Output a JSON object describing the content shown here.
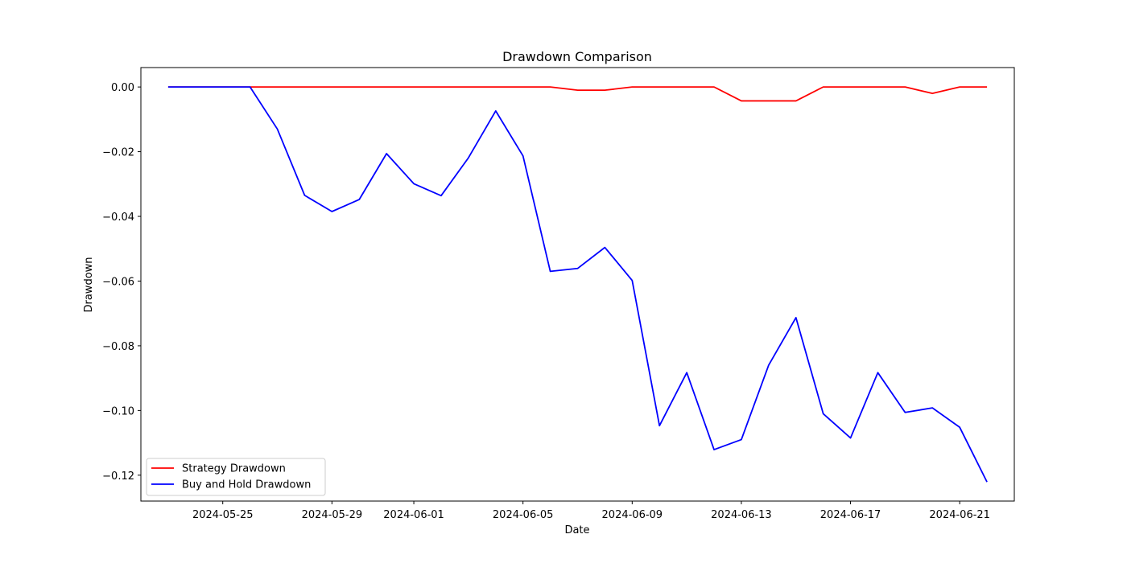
{
  "chart_data": {
    "type": "line",
    "title": "Drawdown Comparison",
    "xlabel": "Date",
    "ylabel": "Drawdown",
    "ylim": [
      -0.128,
      0.006
    ],
    "xlim": [
      "2024-05-22",
      "2024-06-23"
    ],
    "grid": false,
    "legend_position": "lower-left",
    "x": [
      "2024-05-23",
      "2024-05-24",
      "2024-05-25",
      "2024-05-26",
      "2024-05-27",
      "2024-05-28",
      "2024-05-29",
      "2024-05-30",
      "2024-05-31",
      "2024-06-01",
      "2024-06-02",
      "2024-06-03",
      "2024-06-04",
      "2024-06-05",
      "2024-06-06",
      "2024-06-07",
      "2024-06-08",
      "2024-06-09",
      "2024-06-10",
      "2024-06-11",
      "2024-06-12",
      "2024-06-13",
      "2024-06-14",
      "2024-06-15",
      "2024-06-16",
      "2024-06-17",
      "2024-06-18",
      "2024-06-19",
      "2024-06-20",
      "2024-06-21",
      "2024-06-22"
    ],
    "series": [
      {
        "name": "Strategy Drawdown",
        "color": "#ff0000",
        "values": [
          0.0,
          0.0,
          0.0,
          0.0,
          0.0,
          0.0,
          0.0,
          0.0,
          0.0,
          0.0,
          0.0,
          0.0,
          0.0,
          0.0,
          0.0,
          -0.001,
          -0.001,
          0.0,
          0.0,
          0.0,
          0.0,
          -0.0043,
          -0.0043,
          -0.0043,
          0.0,
          0.0,
          0.0,
          0.0,
          -0.002,
          0.0,
          0.0
        ]
      },
      {
        "name": "Buy and Hold Drawdown",
        "color": "#0000ff",
        "values": [
          0.0,
          0.0,
          0.0,
          0.0,
          -0.013,
          -0.0335,
          -0.0385,
          -0.0348,
          -0.0206,
          -0.0299,
          -0.0336,
          -0.0219,
          -0.0074,
          -0.0213,
          -0.057,
          -0.0561,
          -0.0496,
          -0.0598,
          -0.1047,
          -0.0883,
          -0.1121,
          -0.109,
          -0.086,
          -0.0713,
          -0.101,
          -0.1085,
          -0.0883,
          -0.1006,
          -0.0992,
          -0.1052,
          -0.1221
        ]
      }
    ],
    "x_ticks": [
      "2024-05-25",
      "2024-05-29",
      "2024-06-01",
      "2024-06-05",
      "2024-06-09",
      "2024-06-13",
      "2024-06-17",
      "2024-06-21"
    ],
    "y_ticks": [
      0.0,
      -0.02,
      -0.04,
      -0.06,
      -0.08,
      -0.1,
      -0.12
    ],
    "y_tick_labels": [
      "0.00",
      "−0.02",
      "−0.04",
      "−0.06",
      "−0.08",
      "−0.10",
      "−0.12"
    ]
  }
}
